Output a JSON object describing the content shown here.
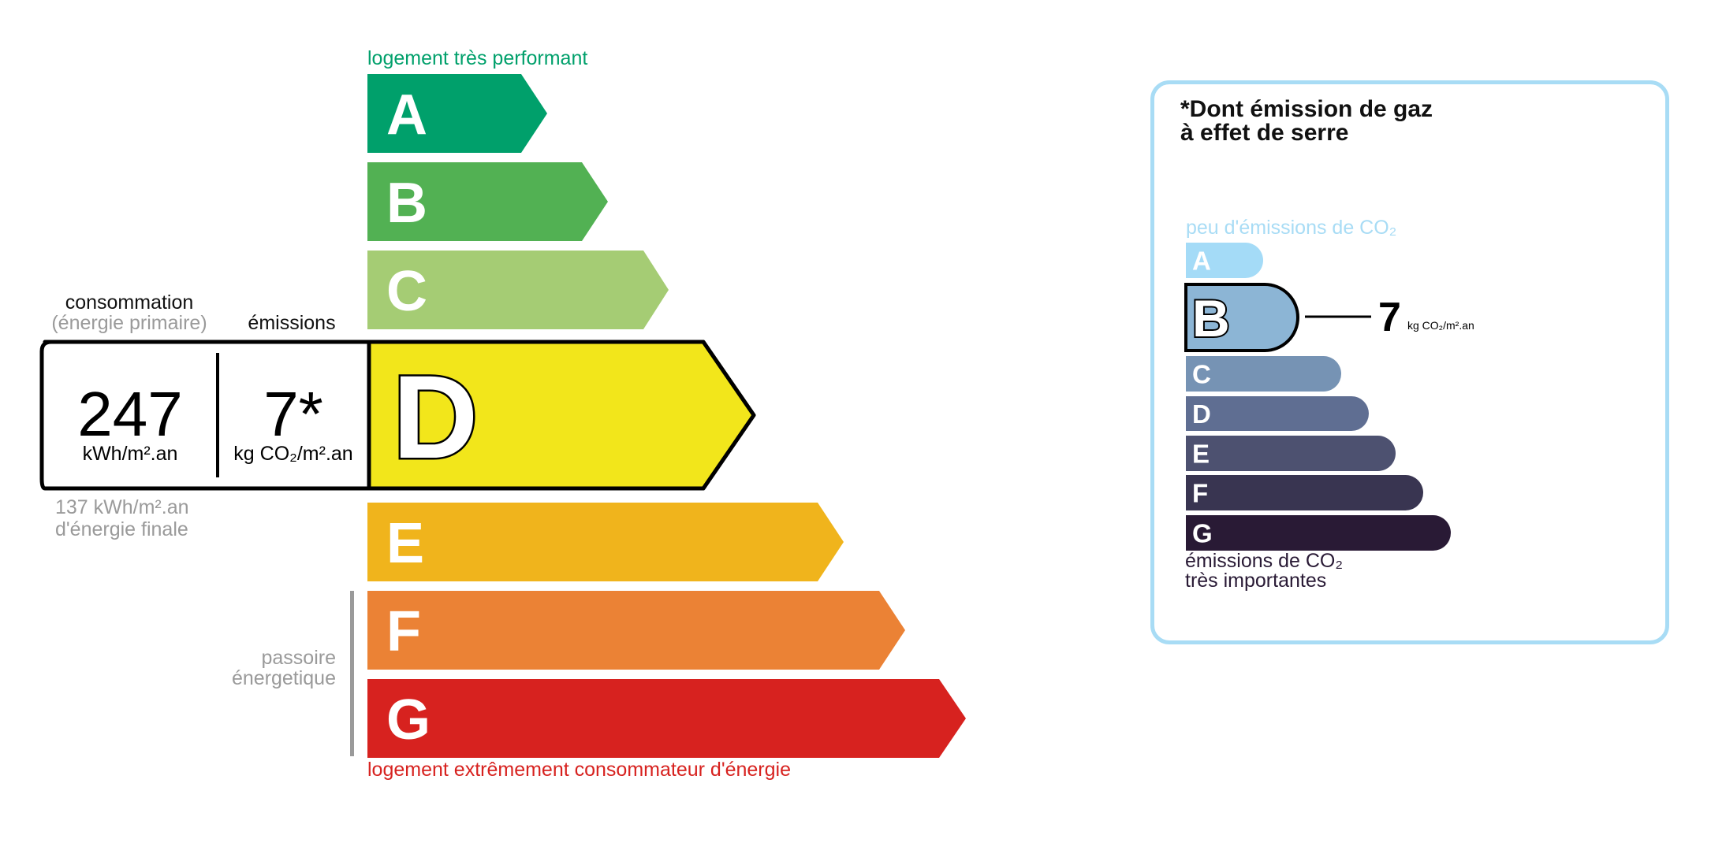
{
  "energy": {
    "top_label": "logement très performant",
    "bottom_label": "logement extrêmement consommateur d'énergie",
    "passoire_label": [
      "passoire",
      "énergetique"
    ],
    "classes": [
      {
        "letter": "A",
        "color": "#00a06b"
      },
      {
        "letter": "B",
        "color": "#52b153"
      },
      {
        "letter": "C",
        "color": "#a5cc74"
      },
      {
        "letter": "D",
        "color": "#f2e61b"
      },
      {
        "letter": "E",
        "color": "#f0b41c"
      },
      {
        "letter": "F",
        "color": "#eb8235"
      },
      {
        "letter": "G",
        "color": "#d7221f"
      }
    ],
    "current_class": "D",
    "consumption_header": "consommation",
    "consumption_subheader": "(énergie primaire)",
    "emissions_header": "émissions",
    "consumption_value": "247",
    "consumption_unit": "kWh/m².an",
    "emissions_value": "7*",
    "emissions_unit": "kg CO₂/m².an",
    "final_energy_value": "137 kWh/m².an",
    "final_energy_label": "d'énergie finale",
    "top_label_color": "#00a06b",
    "bottom_label_color": "#d7221f"
  },
  "ges": {
    "title_line1": "*Dont émission de gaz",
    "title_line2": "à effet de serre",
    "top_label": "peu d'émissions de CO₂",
    "bottom_label_line1": "émissions de CO₂",
    "bottom_label_line2": "très importantes",
    "classes": [
      {
        "letter": "A",
        "color": "#a4dbf7"
      },
      {
        "letter": "B",
        "color": "#8cb5d5"
      },
      {
        "letter": "C",
        "color": "#7693b4"
      },
      {
        "letter": "D",
        "color": "#5f6e92"
      },
      {
        "letter": "E",
        "color": "#4d5170"
      },
      {
        "letter": "F",
        "color": "#393551"
      },
      {
        "letter": "G",
        "color": "#291a35"
      }
    ],
    "current_class": "B",
    "value": "7",
    "unit": "kg CO₂/m².an",
    "border_color": "#a8dcf5"
  }
}
